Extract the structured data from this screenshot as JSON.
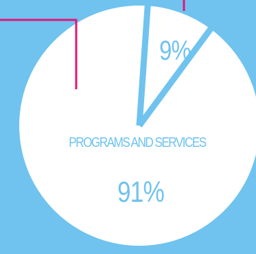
{
  "colors": {
    "background": "#6fc3ee",
    "pie_fill": "#ffffff",
    "separator": "#6fc3ee",
    "callout_lines": "#e0157a",
    "label_text": "#6fc3ee"
  },
  "chart_data": {
    "type": "pie",
    "title": "",
    "slices": [
      {
        "label": "",
        "value": 9,
        "display": "9%"
      },
      {
        "label": "PROGRAMS AND SERVICES",
        "value": 91,
        "display": "91%"
      }
    ]
  }
}
